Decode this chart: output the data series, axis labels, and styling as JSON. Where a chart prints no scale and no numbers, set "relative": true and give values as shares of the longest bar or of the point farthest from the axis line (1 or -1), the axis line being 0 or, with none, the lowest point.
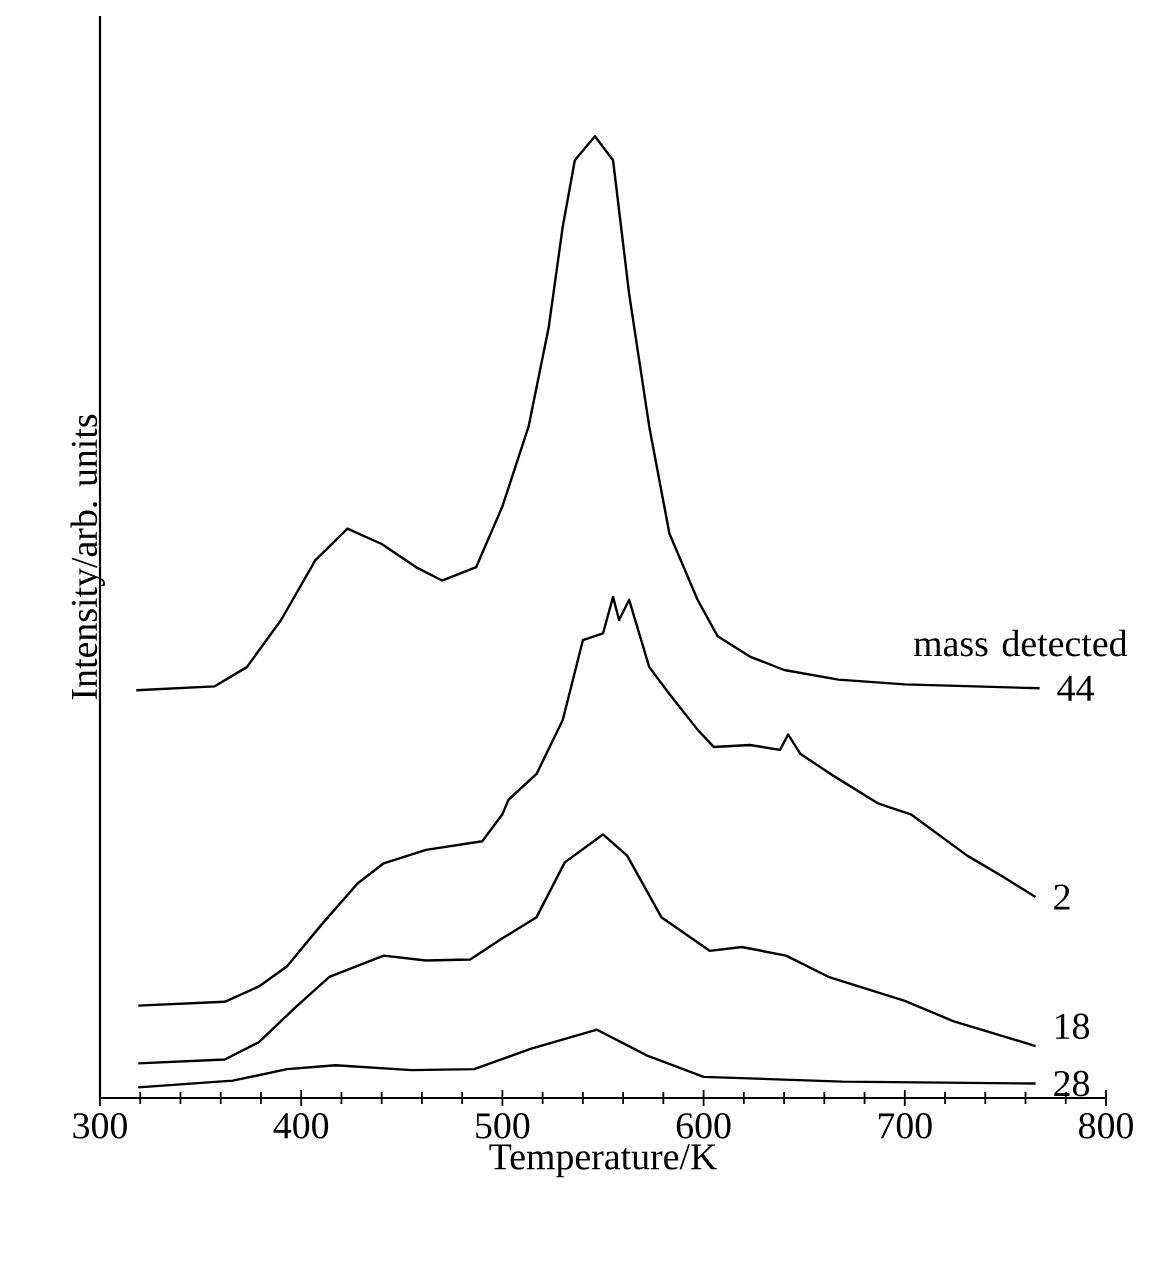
{
  "chart_data": {
    "type": "line",
    "xlabel": "Temperature/K",
    "ylabel": "Intensity/arb. units",
    "legend_title": "mass detected",
    "relative": true,
    "xlim": [
      300,
      800
    ],
    "xticks": [
      300,
      400,
      500,
      600,
      700,
      800
    ],
    "marker": "none",
    "line_style": "solid",
    "grid": false,
    "series": [
      {
        "name": "44",
        "color": "#000000",
        "x": [
          318,
          357,
          373,
          390,
          407,
          423,
          440,
          457,
          470,
          487,
          500,
          513,
          523,
          530,
          536,
          546,
          555,
          563,
          573,
          583,
          597,
          607,
          623,
          640,
          667,
          700,
          767
        ],
        "values": [
          0.424,
          0.428,
          0.448,
          0.497,
          0.559,
          0.592,
          0.576,
          0.552,
          0.538,
          0.552,
          0.615,
          0.698,
          0.801,
          0.906,
          0.975,
          1.0,
          0.975,
          0.836,
          0.698,
          0.587,
          0.518,
          0.48,
          0.459,
          0.445,
          0.435,
          0.43,
          0.426
        ]
      },
      {
        "name": "2",
        "color": "#000000",
        "x": [
          319,
          362,
          379,
          393,
          410,
          428,
          441,
          462,
          490,
          500,
          503,
          517,
          530,
          540,
          550,
          555,
          558,
          563,
          573,
          583,
          597,
          605,
          623,
          638,
          642,
          648,
          663,
          687,
          703,
          731,
          748,
          765
        ],
        "values": [
          0.096,
          0.1,
          0.116,
          0.137,
          0.18,
          0.223,
          0.244,
          0.258,
          0.267,
          0.295,
          0.31,
          0.337,
          0.393,
          0.476,
          0.483,
          0.521,
          0.497,
          0.518,
          0.448,
          0.42,
          0.383,
          0.365,
          0.367,
          0.362,
          0.378,
          0.358,
          0.337,
          0.306,
          0.295,
          0.252,
          0.231,
          0.209
        ]
      },
      {
        "name": "18",
        "color": "#000000",
        "x": [
          319,
          362,
          379,
          397,
          414,
          441,
          462,
          484,
          500,
          517,
          531,
          550,
          562,
          579,
          603,
          619,
          641,
          662,
          700,
          724,
          765
        ],
        "values": [
          0.036,
          0.04,
          0.058,
          0.094,
          0.126,
          0.148,
          0.143,
          0.144,
          0.166,
          0.188,
          0.245,
          0.274,
          0.252,
          0.188,
          0.153,
          0.157,
          0.148,
          0.126,
          0.101,
          0.08,
          0.054
        ]
      },
      {
        "name": "28",
        "color": "#000000",
        "x": [
          319,
          366,
          393,
          417,
          455,
          486,
          514,
          547,
          572,
          600,
          669,
          765
        ],
        "values": [
          0.011,
          0.018,
          0.03,
          0.034,
          0.029,
          0.03,
          0.051,
          0.071,
          0.044,
          0.022,
          0.017,
          0.015
        ]
      }
    ]
  }
}
